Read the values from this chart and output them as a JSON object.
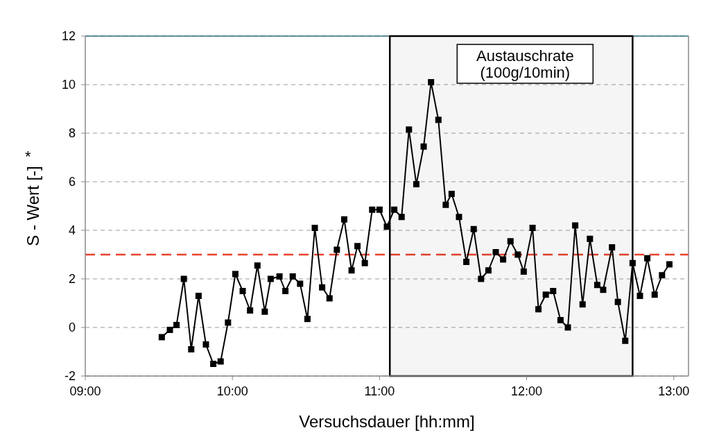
{
  "chart_data": {
    "type": "line",
    "xlabel": "Versuchsdauer [hh:mm]",
    "ylabel": "S - Wert [-]",
    "annotations": [
      "*"
    ],
    "xlim": [
      9,
      13.1
    ],
    "xticks": [
      {
        "value": 9,
        "label": "09:00"
      },
      {
        "value": 10,
        "label": "10:00"
      },
      {
        "value": 11,
        "label": "11:00"
      },
      {
        "value": 12,
        "label": "12:00"
      },
      {
        "value": 13,
        "label": "13:00"
      }
    ],
    "ylim": [
      -2,
      12
    ],
    "yticks": [
      -2,
      0,
      2,
      4,
      6,
      8,
      10,
      12
    ],
    "grid": "y",
    "marker": "square",
    "line_style": "solid",
    "ref_lines": [
      {
        "axis": "y",
        "value": 3,
        "label": null,
        "color": "#e8412c",
        "line_style": "dashed"
      }
    ],
    "bands": [
      {
        "axis": "x",
        "from": 11.07,
        "to": 12.72,
        "label": "Austauschrate\n(100g/10min)",
        "color": "#000000"
      }
    ],
    "series": [
      {
        "color": "#000000",
        "x": [
          9.52,
          9.575,
          9.62,
          9.67,
          9.72,
          9.77,
          9.82,
          9.87,
          9.92,
          9.97,
          10.02,
          10.07,
          10.12,
          10.17,
          10.22,
          10.26,
          10.32,
          10.36,
          10.41,
          10.46,
          10.51,
          10.56,
          10.61,
          10.66,
          10.71,
          10.76,
          10.81,
          10.85,
          10.9,
          10.95,
          11.0,
          11.05,
          11.1,
          11.15,
          11.2,
          11.25,
          11.3,
          11.35,
          11.4,
          11.45,
          11.49,
          11.54,
          11.59,
          11.64,
          11.69,
          11.74,
          11.79,
          11.84,
          11.89,
          11.94,
          11.98,
          12.04,
          12.08,
          12.13,
          12.18,
          12.23,
          12.28,
          12.33,
          12.38,
          12.43,
          12.48,
          12.52,
          12.58,
          12.62,
          12.67,
          12.72,
          12.77,
          12.82,
          12.87,
          12.92,
          12.97
        ],
        "values": [
          -0.4,
          -0.1,
          0.1,
          2.0,
          -0.9,
          1.3,
          -0.7,
          -1.5,
          -1.4,
          0.2,
          2.2,
          1.5,
          0.7,
          2.55,
          0.65,
          2.0,
          2.1,
          1.5,
          2.1,
          1.8,
          0.35,
          4.1,
          1.65,
          1.2,
          3.2,
          4.45,
          2.35,
          3.35,
          2.65,
          4.85,
          4.85,
          4.15,
          4.85,
          4.55,
          8.15,
          5.9,
          7.45,
          10.1,
          8.55,
          5.05,
          5.5,
          4.55,
          2.7,
          4.05,
          2.0,
          2.35,
          3.1,
          2.8,
          3.55,
          3.0,
          2.3,
          4.1,
          0.75,
          1.35,
          1.5,
          0.3,
          0.0,
          4.2,
          0.95,
          3.65,
          1.75,
          1.55,
          3.3,
          1.05,
          -0.55,
          2.65,
          1.3,
          2.85,
          1.35,
          2.15,
          2.6
        ]
      }
    ]
  }
}
